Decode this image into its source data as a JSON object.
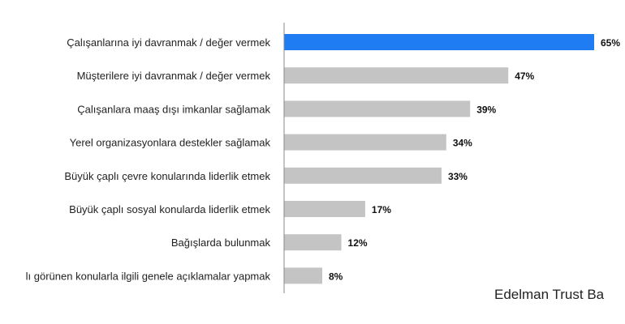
{
  "chart_data": {
    "type": "bar",
    "orientation": "horizontal",
    "categories": [
      "Çalışanlarına iyi davranmak / değer vermek",
      "Müşterilere iyi davranmak / değer vermek",
      "Çalışanlara maaş dışı imkanlar sağlamak",
      "Yerel organizasyonlara destekler sağlamak",
      "Büyük çaplı çevre konularında liderlik etmek",
      "Büyük çaplı sosyal konularda liderlik etmek",
      "Bağışlarda bulunmak",
      "lı görünen konularla ilgili genele açıklamalar yapmak"
    ],
    "values": [
      65,
      47,
      39,
      34,
      33,
      17,
      12,
      8
    ],
    "value_labels": [
      "65%",
      "47%",
      "39%",
      "34%",
      "33%",
      "17%",
      "12%",
      "8%"
    ],
    "xlim": [
      0,
      65
    ],
    "grid": false,
    "colors": {
      "highlight": "#1f7cf2",
      "default": "#c4c4c4",
      "axis": "#888888"
    },
    "highlight_index": 0
  },
  "source": "Edelman Trust Ba"
}
